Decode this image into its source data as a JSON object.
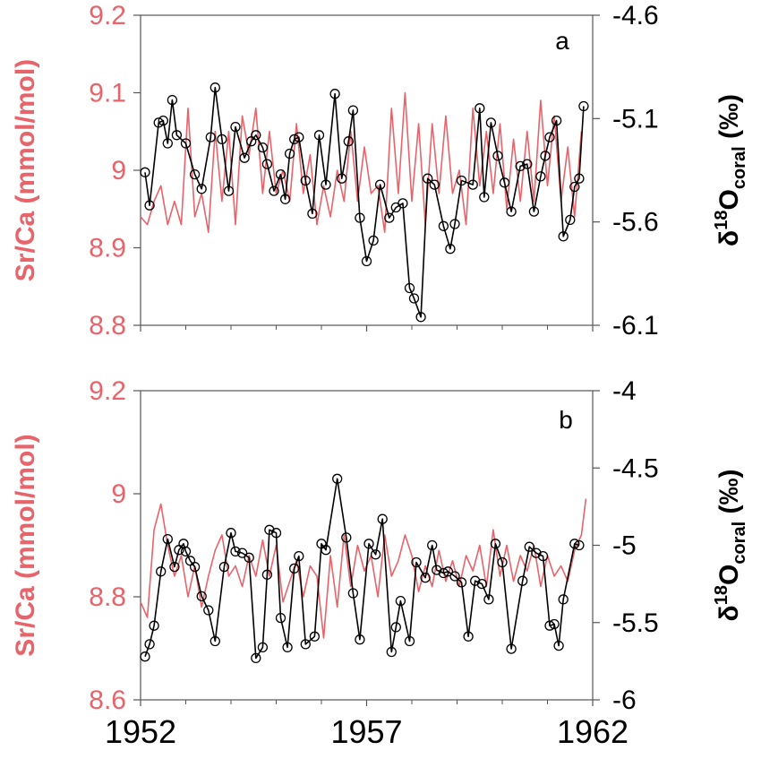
{
  "colors": {
    "srca": "#e8636a",
    "d18o": "#000000",
    "axis": "#555555"
  },
  "chart_data": [
    {
      "type": "line",
      "panel_label": "a",
      "xlim": [
        1952,
        1962
      ],
      "x_ticks": [
        "1952",
        "1957",
        "1962"
      ],
      "left_axis": {
        "label": "Sr/Ca (mmol/mol)",
        "ylim": [
          8.8,
          9.2
        ],
        "ticks": [
          "9.2",
          "9.1",
          "9",
          "8.9",
          "8.8"
        ]
      },
      "right_axis": {
        "label_main": "δ",
        "label_sup": "18",
        "label_base": "O",
        "label_sub": "coral",
        "label_unit": " (‰)",
        "ylim": [
          -4.6,
          -6.1
        ],
        "ticks": [
          "-4.6",
          "-5.1",
          "-5.6",
          "-6.1"
        ]
      },
      "series": [
        {
          "axis": "left",
          "x": [
            1952.0,
            1952.15,
            1952.3,
            1952.45,
            1952.6,
            1952.75,
            1952.9,
            1953.05,
            1953.2,
            1953.35,
            1953.5,
            1953.65,
            1953.8,
            1953.95,
            1954.1,
            1954.25,
            1954.4,
            1954.55,
            1954.7,
            1954.85,
            1955.0,
            1955.15,
            1955.3,
            1955.45,
            1955.6,
            1955.75,
            1955.9,
            1956.05,
            1956.2,
            1956.35,
            1956.5,
            1956.65,
            1956.8,
            1956.95,
            1957.1,
            1957.25,
            1957.4,
            1957.55,
            1957.7,
            1957.85,
            1958.0,
            1958.15,
            1958.3,
            1958.45,
            1958.6,
            1958.75,
            1958.9,
            1959.05,
            1959.2,
            1959.35,
            1959.5,
            1959.65,
            1959.8,
            1959.95,
            1960.1,
            1960.25,
            1960.4,
            1960.55,
            1960.7,
            1960.85,
            1961.0,
            1961.15,
            1961.3,
            1961.45,
            1961.6,
            1961.75
          ],
          "y": [
            8.94,
            8.93,
            8.96,
            8.98,
            8.93,
            8.96,
            8.93,
            9.08,
            8.94,
            8.97,
            8.92,
            9.05,
            8.96,
            9.05,
            8.93,
            9.07,
            9.02,
            9.08,
            8.97,
            9.05,
            8.97,
            9.0,
            8.96,
            9.06,
            8.97,
            9.02,
            8.93,
            8.98,
            8.94,
            9.0,
            8.96,
            9.05,
            8.96,
            9.03,
            8.97,
            8.98,
            8.92,
            9.08,
            8.97,
            9.1,
            8.96,
            9.06,
            8.93,
            9.06,
            8.97,
            9.07,
            8.97,
            9.0,
            8.93,
            9.08,
            8.98,
            9.05,
            8.97,
            9.06,
            8.95,
            9.04,
            8.96,
            9.05,
            8.96,
            9.09,
            8.98,
            9.07,
            8.96,
            9.03,
            8.94,
            9.05
          ]
        },
        {
          "axis": "right",
          "x": [
            1952.1,
            1952.2,
            1952.4,
            1952.5,
            1952.6,
            1952.7,
            1952.8,
            1953.0,
            1953.2,
            1953.35,
            1953.55,
            1953.65,
            1953.8,
            1953.95,
            1954.1,
            1954.3,
            1954.45,
            1954.55,
            1954.7,
            1954.8,
            1954.95,
            1955.1,
            1955.2,
            1955.3,
            1955.4,
            1955.5,
            1955.65,
            1955.8,
            1955.95,
            1956.1,
            1956.3,
            1956.45,
            1956.6,
            1956.7,
            1956.85,
            1957.0,
            1957.15,
            1957.3,
            1957.5,
            1957.65,
            1957.8,
            1957.95,
            1958.05,
            1958.2,
            1958.35,
            1958.5,
            1958.7,
            1958.85,
            1958.95,
            1959.1,
            1959.35,
            1959.5,
            1959.6,
            1959.75,
            1959.9,
            1960.05,
            1960.2,
            1960.4,
            1960.55,
            1960.7,
            1960.85,
            1960.95,
            1961.05,
            1961.2,
            1961.35,
            1961.5,
            1961.6,
            1961.7,
            1961.8
          ],
          "y": [
            -5.36,
            -5.52,
            -5.12,
            -5.11,
            -5.22,
            -5.01,
            -5.18,
            -5.22,
            -5.37,
            -5.44,
            -5.19,
            -4.95,
            -5.2,
            -5.45,
            -5.14,
            -5.29,
            -5.21,
            -5.18,
            -5.24,
            -5.32,
            -5.45,
            -5.37,
            -5.49,
            -5.27,
            -5.2,
            -5.19,
            -5.4,
            -5.56,
            -5.18,
            -5.42,
            -4.98,
            -5.39,
            -5.21,
            -5.06,
            -5.58,
            -5.79,
            -5.69,
            -5.42,
            -5.58,
            -5.53,
            -5.51,
            -5.92,
            -5.97,
            -6.06,
            -5.39,
            -5.42,
            -5.62,
            -5.73,
            -5.61,
            -5.4,
            -5.42,
            -5.05,
            -5.48,
            -5.12,
            -5.28,
            -5.41,
            -5.55,
            -5.33,
            -5.32,
            -5.55,
            -5.38,
            -5.28,
            -5.19,
            -5.11,
            -5.67,
            -5.59,
            -5.43,
            -5.39,
            -5.04
          ]
        }
      ]
    },
    {
      "type": "line",
      "panel_label": "b",
      "xlim": [
        1952,
        1962
      ],
      "x_ticks": [
        "1952",
        "1957",
        "1962"
      ],
      "left_axis": {
        "label": "Sr/Ca (mmol/mol)",
        "ylim": [
          8.6,
          9.2
        ],
        "ticks": [
          "9.2",
          "9",
          "8.8",
          "8.6"
        ]
      },
      "right_axis": {
        "label_main": "δ",
        "label_sup": "18",
        "label_base": "O",
        "label_sub": "coral",
        "label_unit": " (‰)",
        "ylim": [
          -4,
          -6
        ],
        "ticks": [
          "-4",
          "-4.5",
          "-5",
          "-5.5",
          "-6"
        ]
      },
      "series": [
        {
          "axis": "left",
          "x": [
            1952.0,
            1952.15,
            1952.3,
            1952.45,
            1952.6,
            1952.75,
            1952.9,
            1953.05,
            1953.2,
            1953.35,
            1953.5,
            1953.65,
            1953.8,
            1953.95,
            1954.1,
            1954.25,
            1954.4,
            1954.55,
            1954.7,
            1954.85,
            1955.0,
            1955.15,
            1955.3,
            1955.45,
            1955.6,
            1955.75,
            1955.9,
            1956.05,
            1956.2,
            1956.35,
            1956.5,
            1956.65,
            1956.8,
            1956.95,
            1957.1,
            1957.25,
            1957.4,
            1957.55,
            1957.7,
            1957.85,
            1958.0,
            1958.15,
            1958.3,
            1958.45,
            1958.6,
            1958.75,
            1958.9,
            1959.05,
            1959.2,
            1959.35,
            1959.5,
            1959.65,
            1959.8,
            1959.95,
            1960.1,
            1960.25,
            1960.4,
            1960.55,
            1960.7,
            1960.85,
            1961.0,
            1961.15,
            1961.3,
            1961.45,
            1961.6,
            1961.75,
            1961.85
          ],
          "y": [
            8.79,
            8.76,
            8.93,
            8.98,
            8.9,
            8.84,
            8.88,
            8.8,
            8.86,
            8.78,
            8.84,
            8.89,
            8.92,
            8.84,
            8.86,
            8.82,
            8.88,
            8.84,
            8.91,
            8.84,
            8.9,
            8.79,
            8.83,
            8.87,
            8.8,
            8.86,
            8.84,
            8.72,
            8.88,
            8.78,
            8.92,
            8.82,
            8.9,
            8.85,
            8.88,
            8.8,
            8.92,
            8.84,
            8.87,
            8.92,
            8.88,
            8.81,
            8.86,
            8.82,
            8.89,
            8.83,
            8.87,
            8.82,
            8.88,
            8.85,
            8.9,
            8.82,
            8.93,
            8.84,
            8.9,
            8.83,
            8.88,
            8.85,
            8.9,
            8.82,
            8.88,
            8.84,
            8.86,
            8.83,
            8.89,
            8.92,
            8.99
          ]
        },
        {
          "axis": "right",
          "x": [
            1952.1,
            1952.2,
            1952.3,
            1952.45,
            1952.6,
            1952.75,
            1952.85,
            1952.95,
            1953.0,
            1953.1,
            1953.2,
            1953.35,
            1953.5,
            1953.65,
            1953.85,
            1954.0,
            1954.1,
            1954.25,
            1954.4,
            1954.55,
            1954.7,
            1954.8,
            1954.85,
            1955.0,
            1955.1,
            1955.25,
            1955.4,
            1955.5,
            1955.65,
            1955.85,
            1956.0,
            1956.1,
            1956.35,
            1956.55,
            1956.7,
            1956.85,
            1957.05,
            1957.2,
            1957.35,
            1957.55,
            1957.65,
            1957.75,
            1957.95,
            1958.1,
            1958.3,
            1958.45,
            1958.55,
            1958.7,
            1958.8,
            1958.95,
            1959.1,
            1959.25,
            1959.4,
            1959.55,
            1959.7,
            1959.85,
            1960.0,
            1960.2,
            1960.45,
            1960.6,
            1960.75,
            1960.9,
            1961.05,
            1961.15,
            1961.25,
            1961.35,
            1961.6,
            1961.7
          ],
          "y": [
            -5.72,
            -5.64,
            -5.52,
            -5.17,
            -4.96,
            -5.14,
            -5.03,
            -4.99,
            -5.04,
            -5.1,
            -5.14,
            -5.33,
            -5.42,
            -5.62,
            -5.14,
            -4.92,
            -5.04,
            -5.05,
            -5.08,
            -5.73,
            -5.66,
            -5.19,
            -4.9,
            -4.92,
            -5.47,
            -5.66,
            -5.15,
            -5.07,
            -5.64,
            -5.59,
            -4.99,
            -5.03,
            -4.57,
            -4.95,
            -5.31,
            -5.61,
            -4.99,
            -5.06,
            -4.83,
            -5.69,
            -5.53,
            -5.36,
            -5.62,
            -5.11,
            -5.21,
            -5.0,
            -5.16,
            -5.18,
            -5.17,
            -5.2,
            -5.24,
            -5.59,
            -5.23,
            -5.25,
            -5.35,
            -4.99,
            -5.11,
            -5.67,
            -5.23,
            -5.01,
            -5.05,
            -5.07,
            -5.52,
            -5.51,
            -5.65,
            -5.35,
            -4.99,
            -5.0
          ]
        }
      ]
    }
  ]
}
